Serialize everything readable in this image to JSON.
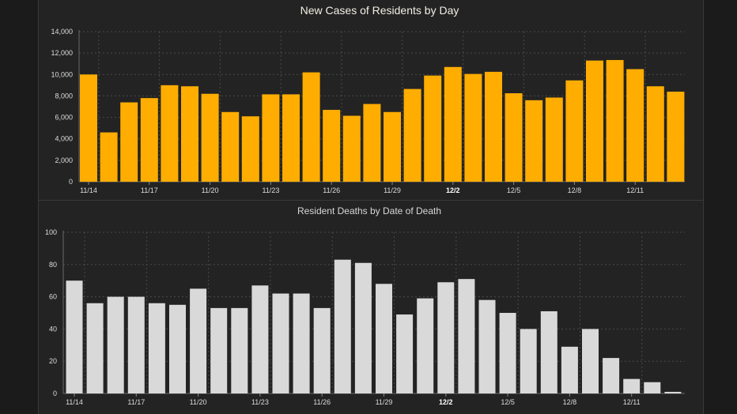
{
  "chart_data": [
    {
      "type": "bar",
      "title": "New Cases of Residents by Day",
      "categories": [
        "11/14",
        "11/15",
        "11/16",
        "11/17",
        "11/18",
        "11/19",
        "11/20",
        "11/21",
        "11/22",
        "11/23",
        "11/24",
        "11/25",
        "11/26",
        "11/27",
        "11/28",
        "11/29",
        "11/30",
        "12/1",
        "12/2",
        "12/3",
        "12/4",
        "12/5",
        "12/6",
        "12/7",
        "12/8",
        "12/9",
        "12/10",
        "12/11",
        "12/12",
        "12/13"
      ],
      "values": [
        10000,
        4600,
        7400,
        7800,
        9000,
        8900,
        8200,
        6500,
        6100,
        8150,
        8150,
        10200,
        6700,
        6150,
        7250,
        6500,
        8650,
        9900,
        10700,
        10050,
        10250,
        8250,
        7600,
        7850,
        9450,
        11300,
        11350,
        10500,
        8900,
        8400
      ],
      "xticks": [
        "11/14",
        "11/17",
        "11/20",
        "11/23",
        "11/26",
        "11/29",
        "12/2",
        "12/5",
        "12/8",
        "12/11"
      ],
      "xtick_bold": "12/2",
      "yticks": [
        "0",
        "2,000",
        "4,000",
        "6,000",
        "8,000",
        "10,000",
        "12,000",
        "14,000"
      ],
      "ylim": [
        0,
        14000
      ],
      "xlabel": "",
      "ylabel": "",
      "bar_color": "#ffad00",
      "grid": true
    },
    {
      "type": "bar",
      "title": "Resident Deaths by Date of Death",
      "categories": [
        "11/14",
        "11/15",
        "11/16",
        "11/17",
        "11/18",
        "11/19",
        "11/20",
        "11/21",
        "11/22",
        "11/23",
        "11/24",
        "11/25",
        "11/26",
        "11/27",
        "11/28",
        "11/29",
        "11/30",
        "12/1",
        "12/2",
        "12/3",
        "12/4",
        "12/5",
        "12/6",
        "12/7",
        "12/8",
        "12/9",
        "12/10",
        "12/11",
        "12/12",
        "12/13",
        "12/14"
      ],
      "values": [
        70,
        56,
        60,
        60,
        56,
        55,
        65,
        53,
        53,
        67,
        62,
        62,
        53,
        83,
        81,
        68,
        49,
        59,
        69,
        71,
        58,
        50,
        40,
        51,
        29,
        40,
        22,
        9,
        7,
        1,
        0
      ],
      "xticks": [
        "11/14",
        "11/17",
        "11/20",
        "11/23",
        "11/26",
        "11/29",
        "12/2",
        "12/5",
        "12/8",
        "12/11"
      ],
      "xtick_bold": "12/2",
      "yticks": [
        "0",
        "20",
        "40",
        "60",
        "80",
        "100"
      ],
      "ylim": [
        0,
        100
      ],
      "xlabel": "",
      "ylabel": "",
      "bar_color": "#d9d9d9",
      "grid": true
    }
  ]
}
